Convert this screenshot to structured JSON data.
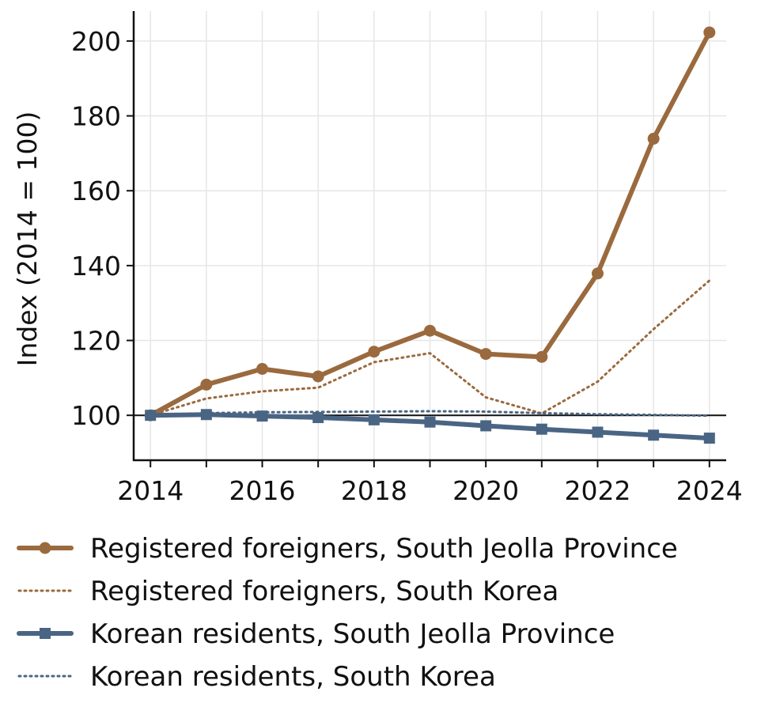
{
  "chart_data": {
    "type": "line",
    "title": "",
    "xlabel": "",
    "ylabel": "Index (2014 = 100)",
    "x": [
      2014,
      2015,
      2016,
      2017,
      2018,
      2019,
      2020,
      2021,
      2022,
      2023,
      2024
    ],
    "xticks": [
      "2014",
      "2016",
      "2018",
      "2020",
      "2022",
      "2024"
    ],
    "yticks": [
      "100",
      "120",
      "140",
      "160",
      "180",
      "200"
    ],
    "xlim": [
      2013.7,
      2024.3
    ],
    "ylim": [
      88,
      208
    ],
    "grid": true,
    "reference_line": 100,
    "legend_position": "below",
    "series": [
      {
        "name": "Registered foreigners, South Jeolla Province",
        "values": [
          100,
          108.2,
          112.4,
          110.4,
          117.0,
          122.6,
          116.4,
          115.6,
          137.9,
          173.9,
          202.3
        ],
        "color": "#9A6A3E",
        "style": "solid",
        "marker": "circle"
      },
      {
        "name": "Registered foreigners, South Korea",
        "values": [
          100,
          104.5,
          106.4,
          107.4,
          114.2,
          116.6,
          104.8,
          100.5,
          109.0,
          123.0,
          136.0
        ],
        "color": "#9A6A3E",
        "style": "dotted",
        "marker": "none"
      },
      {
        "name": "Korean residents, South Jeolla Province",
        "values": [
          100,
          100.2,
          99.8,
          99.4,
          98.8,
          98.2,
          97.2,
          96.3,
          95.5,
          94.7,
          93.9
        ],
        "color": "#4A6584",
        "style": "solid",
        "marker": "square"
      },
      {
        "name": "Korean residents, South Korea",
        "values": [
          100,
          100.6,
          100.8,
          100.9,
          101.0,
          101.1,
          101.0,
          100.6,
          100.3,
          100.1,
          99.9
        ],
        "color": "#4A6584",
        "style": "dotted",
        "marker": "none"
      }
    ]
  }
}
